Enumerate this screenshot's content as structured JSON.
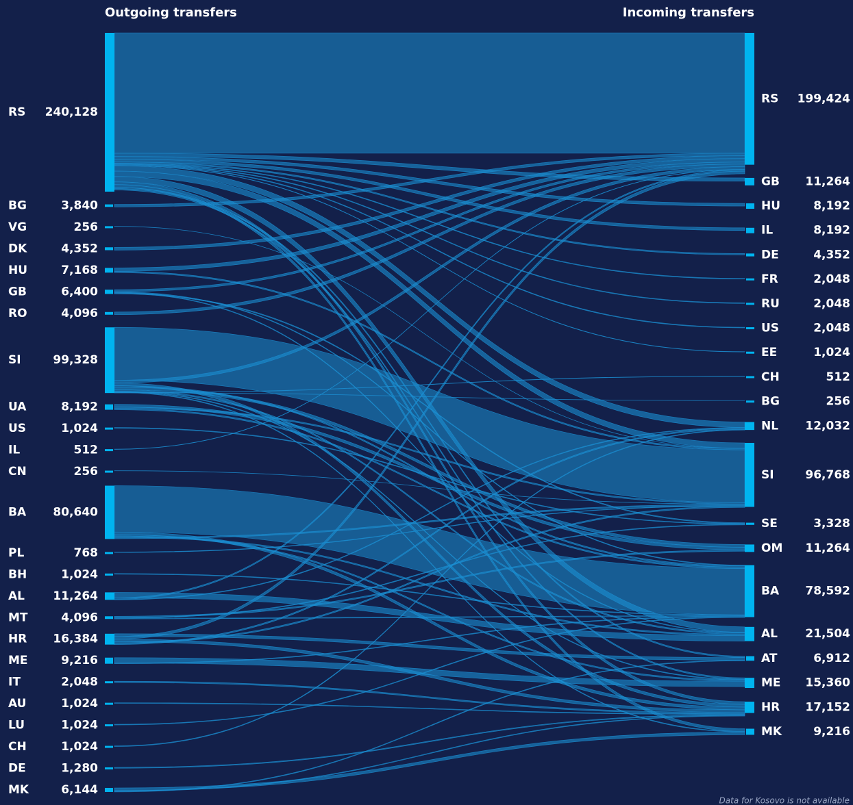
{
  "chart_data": {
    "type": "sankey",
    "left_title": "Outgoing transfers",
    "right_title": "Incoming transfers",
    "note": "Data for Kosovo is not available",
    "node_color": "#00b4f0",
    "link_color": "#1b8fd2",
    "sources": {
      "names": [
        "RS",
        "BG",
        "VG",
        "DK",
        "HU",
        "GB",
        "RO",
        "SI",
        "UA",
        "US",
        "IL",
        "CN",
        "BA",
        "PL",
        "BH",
        "AL",
        "MT",
        "HR",
        "ME",
        "IT",
        "AU",
        "LU",
        "CH",
        "DE",
        "MK"
      ],
      "values": [
        240128,
        3840,
        256,
        4352,
        7168,
        6400,
        4096,
        99328,
        8192,
        1024,
        512,
        256,
        80640,
        768,
        1024,
        11264,
        4096,
        16384,
        9216,
        2048,
        1024,
        1024,
        1024,
        1280,
        6144
      ],
      "value_labels": [
        "240,128",
        "3,840",
        "256",
        "4,352",
        "7,168",
        "6,400",
        "4,096",
        "99,328",
        "8,192",
        "1,024",
        "512",
        "256",
        "80,640",
        "768",
        "1,024",
        "11,264",
        "4,096",
        "16,384",
        "9,216",
        "2,048",
        "1,024",
        "1,024",
        "1,024",
        "1,280",
        "6,144"
      ]
    },
    "targets": {
      "names": [
        "RS",
        "GB",
        "HU",
        "IL",
        "DE",
        "FR",
        "RU",
        "US",
        "EE",
        "CH",
        "BG",
        "NL",
        "SI",
        "SE",
        "OM",
        "BA",
        "AL",
        "AT",
        "ME",
        "HR",
        "MK"
      ],
      "values": [
        199424,
        11264,
        8192,
        8192,
        4352,
        2048,
        2048,
        2048,
        1024,
        512,
        256,
        12032,
        96768,
        3328,
        11264,
        78592,
        21504,
        6912,
        15360,
        17152,
        9216
      ],
      "value_labels": [
        "199,424",
        "11,264",
        "8,192",
        "8,192",
        "4,352",
        "2,048",
        "2,048",
        "2,048",
        "1,024",
        "512",
        "256",
        "12,032",
        "96,768",
        "3,328",
        "11,264",
        "78,592",
        "21,504",
        "6,912",
        "15,360",
        "17,152",
        "9,216"
      ]
    },
    "links": [
      {
        "source": "RS",
        "target": "RS",
        "value": 182000
      },
      {
        "source": "RS",
        "target": "GB",
        "value": 5000
      },
      {
        "source": "RS",
        "target": "HU",
        "value": 4096
      },
      {
        "source": "RS",
        "target": "IL",
        "value": 4096
      },
      {
        "source": "RS",
        "target": "DE",
        "value": 2048
      },
      {
        "source": "RS",
        "target": "FR",
        "value": 1024
      },
      {
        "source": "RS",
        "target": "RU",
        "value": 1024
      },
      {
        "source": "RS",
        "target": "US",
        "value": 1024
      },
      {
        "source": "RS",
        "target": "EE",
        "value": 512
      },
      {
        "source": "RS",
        "target": "NL",
        "value": 8192
      },
      {
        "source": "RS",
        "target": "SI",
        "value": 8192
      },
      {
        "source": "RS",
        "target": "AL",
        "value": 8192
      },
      {
        "source": "RS",
        "target": "HR",
        "value": 4096
      },
      {
        "source": "RS",
        "target": "MK",
        "value": 4096
      },
      {
        "source": "RS",
        "target": "AT",
        "value": 2048
      },
      {
        "source": "RS",
        "target": "ME",
        "value": 2048
      },
      {
        "source": "BG",
        "target": "RS",
        "value": 3840
      },
      {
        "source": "VG",
        "target": "SI",
        "value": 256
      },
      {
        "source": "DK",
        "target": "RS",
        "value": 4352
      },
      {
        "source": "HU",
        "target": "RS",
        "value": 5120
      },
      {
        "source": "HU",
        "target": "SI",
        "value": 2048
      },
      {
        "source": "GB",
        "target": "RS",
        "value": 3072
      },
      {
        "source": "GB",
        "target": "BA",
        "value": 1024
      },
      {
        "source": "GB",
        "target": "AL",
        "value": 1024
      },
      {
        "source": "GB",
        "target": "SE",
        "value": 1280
      },
      {
        "source": "RO",
        "target": "RS",
        "value": 4096
      },
      {
        "source": "SI",
        "target": "SI",
        "value": 80000
      },
      {
        "source": "SI",
        "target": "RS",
        "value": 4096
      },
      {
        "source": "SI",
        "target": "HR",
        "value": 4096
      },
      {
        "source": "SI",
        "target": "BA",
        "value": 2048
      },
      {
        "source": "SI",
        "target": "OM",
        "value": 4096
      },
      {
        "source": "SI",
        "target": "AL",
        "value": 2048
      },
      {
        "source": "SI",
        "target": "ME",
        "value": 1024
      },
      {
        "source": "SI",
        "target": "MK",
        "value": 1024
      },
      {
        "source": "SI",
        "target": "CH",
        "value": 512
      },
      {
        "source": "SI",
        "target": "BG",
        "value": 256
      },
      {
        "source": "UA",
        "target": "OM",
        "value": 4096
      },
      {
        "source": "UA",
        "target": "SI",
        "value": 2048
      },
      {
        "source": "UA",
        "target": "BA",
        "value": 2048
      },
      {
        "source": "US",
        "target": "SE",
        "value": 1024
      },
      {
        "source": "IL",
        "target": "RS",
        "value": 512
      },
      {
        "source": "CN",
        "target": "SI",
        "value": 256
      },
      {
        "source": "BA",
        "target": "BA",
        "value": 70000
      },
      {
        "source": "BA",
        "target": "HR",
        "value": 4096
      },
      {
        "source": "BA",
        "target": "ME",
        "value": 2048
      },
      {
        "source": "BA",
        "target": "AL",
        "value": 2048
      },
      {
        "source": "BA",
        "target": "SI",
        "value": 2048
      },
      {
        "source": "PL",
        "target": "SI",
        "value": 768
      },
      {
        "source": "BH",
        "target": "BA",
        "value": 1024
      },
      {
        "source": "AL",
        "target": "AL",
        "value": 8192
      },
      {
        "source": "AL",
        "target": "RS",
        "value": 2048
      },
      {
        "source": "AL",
        "target": "NL",
        "value": 1024
      },
      {
        "source": "MT",
        "target": "OM",
        "value": 2048
      },
      {
        "source": "MT",
        "target": "SE",
        "value": 1024
      },
      {
        "source": "MT",
        "target": "BA",
        "value": 1024
      },
      {
        "source": "HR",
        "target": "AT",
        "value": 4096
      },
      {
        "source": "HR",
        "target": "RS",
        "value": 4096
      },
      {
        "source": "HR",
        "target": "HR",
        "value": 4096
      },
      {
        "source": "HR",
        "target": "SI",
        "value": 2048
      },
      {
        "source": "HR",
        "target": "NL",
        "value": 2048
      },
      {
        "source": "ME",
        "target": "ME",
        "value": 8192
      },
      {
        "source": "ME",
        "target": "BA",
        "value": 1024
      },
      {
        "source": "IT",
        "target": "HR",
        "value": 2048
      },
      {
        "source": "AU",
        "target": "HR",
        "value": 1024
      },
      {
        "source": "LU",
        "target": "BA",
        "value": 1024
      },
      {
        "source": "CH",
        "target": "NL",
        "value": 1024
      },
      {
        "source": "DE",
        "target": "HR",
        "value": 1280
      },
      {
        "source": "MK",
        "target": "MK",
        "value": 4096
      },
      {
        "source": "MK",
        "target": "HR",
        "value": 1024
      },
      {
        "source": "MK",
        "target": "AT",
        "value": 1024
      }
    ]
  }
}
